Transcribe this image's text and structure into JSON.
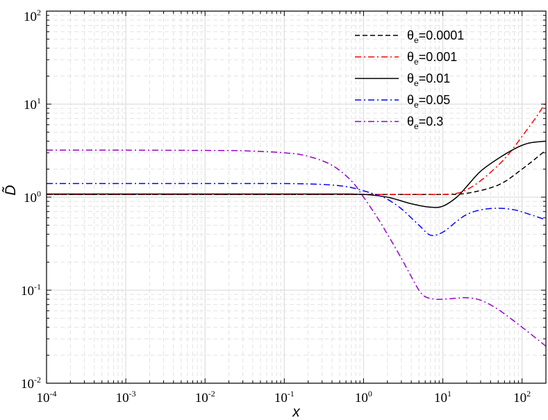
{
  "chart_data": {
    "type": "line",
    "xscale": "log",
    "yscale": "log",
    "xlim": [
      0.0001,
      200
    ],
    "ylim": [
      0.01,
      100
    ],
    "grid": true,
    "legend_position": "top-right",
    "xlabel": "x",
    "ylabel": "D̃",
    "x_ticks": [
      {
        "base": "10",
        "exp": "-4"
      },
      {
        "base": "10",
        "exp": "-3"
      },
      {
        "base": "10",
        "exp": "-2"
      },
      {
        "base": "10",
        "exp": "-1"
      },
      {
        "base": "10",
        "exp": "0"
      },
      {
        "base": "10",
        "exp": "1"
      },
      {
        "base": "10",
        "exp": "2"
      }
    ],
    "y_ticks": [
      {
        "base": "10",
        "exp": "-2"
      },
      {
        "base": "10",
        "exp": "-1"
      },
      {
        "base": "10",
        "exp": "0"
      },
      {
        "base": "10",
        "exp": "1"
      },
      {
        "base": "10",
        "exp": "2"
      }
    ],
    "series": [
      {
        "name_symbol": "θ",
        "name_sub": "e",
        "name_value": "=0.0001",
        "color": "#000000",
        "dash": "dashed",
        "x": [
          0.0001,
          0.001,
          0.01,
          0.1,
          0.5,
          1,
          2,
          5,
          10,
          20,
          50,
          100,
          200
        ],
        "y": [
          1.07,
          1.07,
          1.07,
          1.07,
          1.07,
          1.07,
          1.07,
          1.07,
          1.07,
          1.1,
          1.35,
          2.0,
          3.2
        ]
      },
      {
        "name_symbol": "θ",
        "name_sub": "e",
        "name_value": "=0.001",
        "color": "#ff0000",
        "dash": "dashdot",
        "x": [
          0.0001,
          0.001,
          0.01,
          0.1,
          1,
          5,
          10,
          15,
          20,
          30,
          50,
          70,
          100,
          150,
          200
        ],
        "y": [
          1.07,
          1.07,
          1.07,
          1.07,
          1.07,
          1.07,
          1.07,
          1.1,
          1.2,
          1.5,
          2.2,
          3.0,
          4.5,
          7.2,
          10.5
        ]
      },
      {
        "name_symbol": "θ",
        "name_sub": "e",
        "name_value": "=0.01",
        "color": "#000000",
        "dash": "solid",
        "x": [
          0.0001,
          0.001,
          0.01,
          0.1,
          0.5,
          1,
          2,
          4,
          7,
          10,
          15,
          20,
          30,
          50,
          80,
          120,
          200
        ],
        "y": [
          1.08,
          1.08,
          1.08,
          1.08,
          1.08,
          1.07,
          1.0,
          0.85,
          0.78,
          0.8,
          1.0,
          1.3,
          1.9,
          2.6,
          3.3,
          3.8,
          4.0
        ]
      },
      {
        "name_symbol": "θ",
        "name_sub": "e",
        "name_value": "=0.05",
        "color": "#0000ff",
        "dash": "dashdot",
        "x": [
          0.0001,
          0.001,
          0.01,
          0.1,
          0.3,
          0.6,
          1,
          1.5,
          2,
          3,
          5,
          7,
          10,
          15,
          20,
          30,
          50,
          80,
          120,
          200
        ],
        "y": [
          1.4,
          1.4,
          1.4,
          1.4,
          1.37,
          1.3,
          1.17,
          1.05,
          0.95,
          0.75,
          0.5,
          0.39,
          0.42,
          0.55,
          0.65,
          0.73,
          0.76,
          0.73,
          0.66,
          0.57
        ]
      },
      {
        "name_symbol": "θ",
        "name_sub": "e",
        "name_value": "=0.3",
        "color": "#9900cc",
        "dash": "dashdot",
        "x": [
          0.0001,
          0.001,
          0.01,
          0.03,
          0.1,
          0.2,
          0.4,
          0.7,
          1,
          1.5,
          2,
          3,
          4,
          5,
          6,
          8,
          10,
          15,
          20,
          30,
          50,
          100,
          200
        ],
        "y": [
          3.2,
          3.2,
          3.18,
          3.15,
          3.0,
          2.75,
          2.2,
          1.5,
          1.0,
          0.6,
          0.4,
          0.22,
          0.14,
          0.1,
          0.085,
          0.08,
          0.08,
          0.082,
          0.083,
          0.078,
          0.062,
          0.04,
          0.025
        ]
      }
    ]
  }
}
